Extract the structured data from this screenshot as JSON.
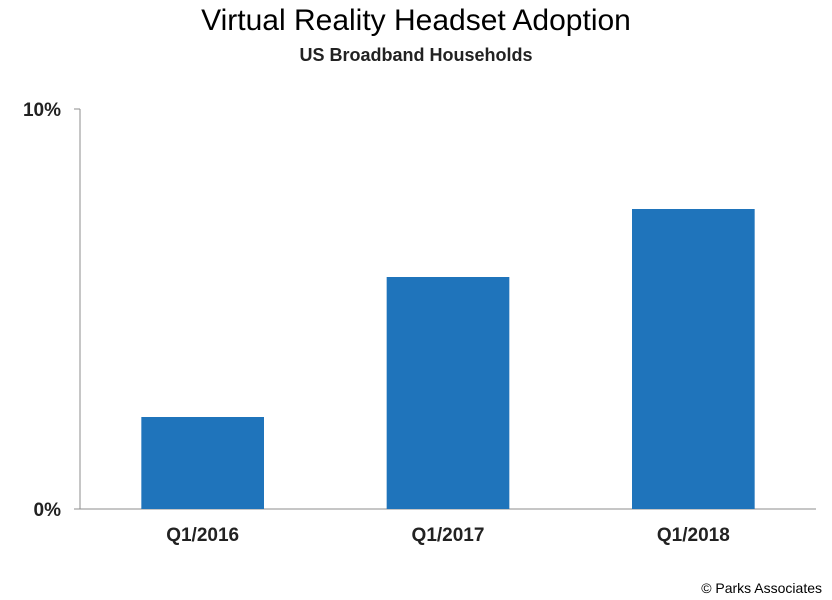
{
  "chart_data": {
    "type": "bar",
    "title": "Virtual Reality Headset Adoption",
    "subtitle": "US Broadband Households",
    "categories": [
      "Q1/2016",
      "Q1/2017",
      "Q1/2018"
    ],
    "values": [
      2.3,
      5.8,
      7.5
    ],
    "ylim": [
      0,
      10
    ],
    "yticks": [
      "0%",
      "10%"
    ],
    "grid": false,
    "bar_color": "#1f74bb",
    "xlabel": "",
    "ylabel": ""
  },
  "credit": "© Parks Associates"
}
